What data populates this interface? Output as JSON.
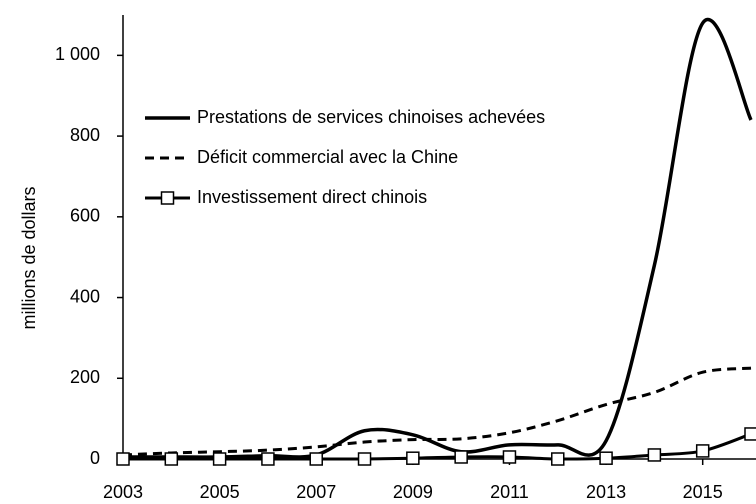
{
  "chart_data": {
    "type": "line",
    "y_label": "millions de dollars",
    "x": [
      2003,
      2004,
      2005,
      2006,
      2007,
      2008,
      2009,
      2010,
      2011,
      2012,
      2013,
      2014,
      2015,
      2016
    ],
    "series": [
      {
        "name": "Prestations de services chinoises achevées",
        "color": "#000000",
        "style": "solid",
        "values": [
          5,
          5,
          5,
          8,
          10,
          70,
          60,
          18,
          35,
          35,
          45,
          480,
          1080,
          840
        ]
      },
      {
        "name": "Déficit commercial avec la Chine",
        "color": "#000000",
        "style": "dashed",
        "values": [
          10,
          15,
          18,
          22,
          30,
          42,
          48,
          50,
          65,
          95,
          135,
          165,
          215,
          225
        ]
      },
      {
        "name": "Investissement direct chinois",
        "color": "#000000",
        "style": "markers",
        "values": [
          0,
          0,
          0,
          0,
          0,
          0,
          2,
          5,
          5,
          0,
          2,
          10,
          20,
          62
        ]
      }
    ],
    "xlim": [
      2003,
      2016
    ],
    "xticks": [
      2003,
      2005,
      2007,
      2009,
      2011,
      2013,
      2015
    ],
    "ylim": [
      0,
      1100
    ],
    "yticks": [
      0,
      200,
      400,
      600,
      800,
      {
        "value": 1000,
        "label": "1 000"
      }
    ],
    "grid": false,
    "legend": "upper-left"
  }
}
